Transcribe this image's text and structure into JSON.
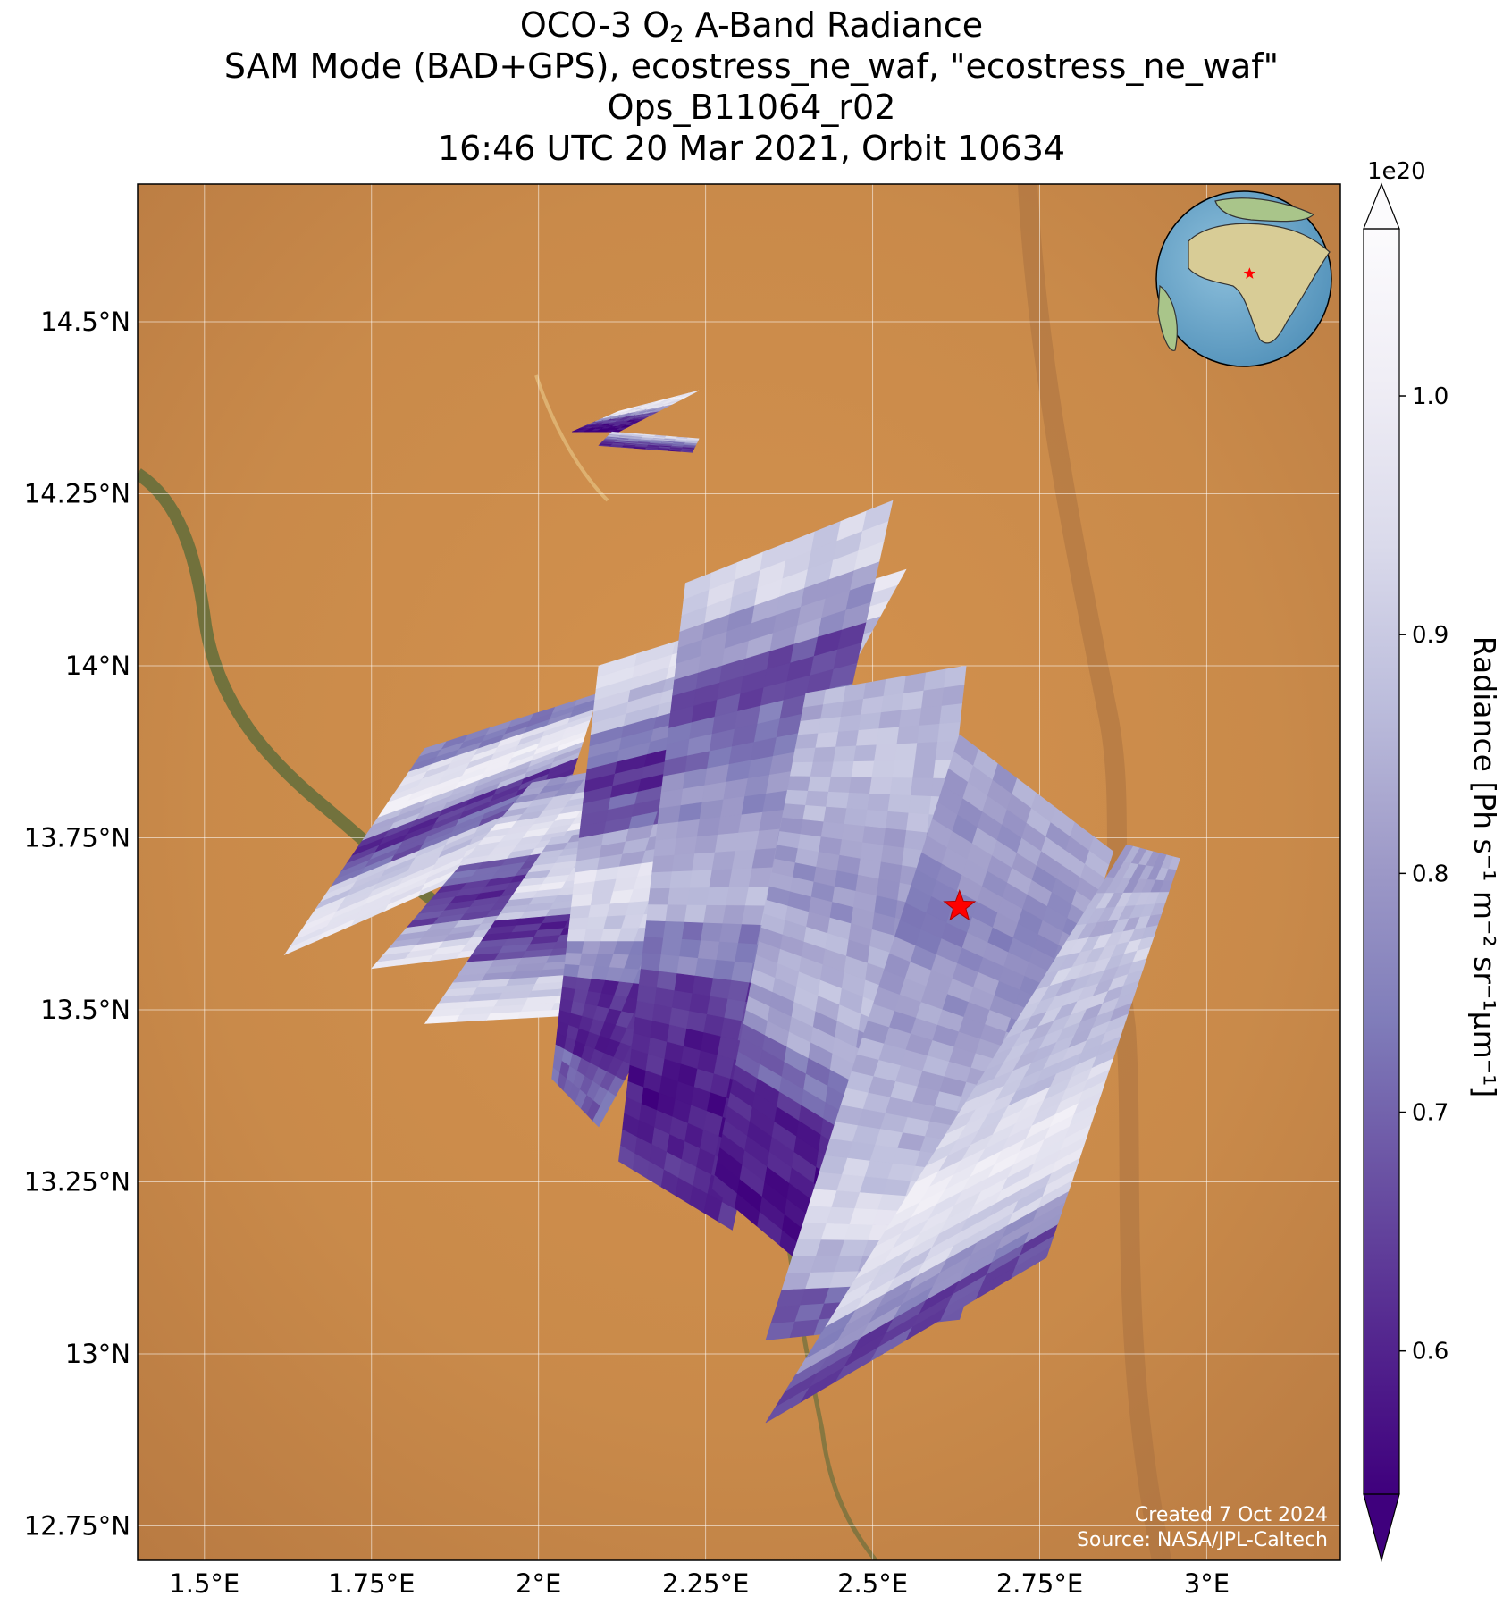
{
  "title": {
    "line1_pre": "OCO-3 O",
    "line1_sub": "2",
    "line1_post": " A-Band Radiance",
    "line2": "SAM Mode (BAD+GPS), ecostress_ne_waf, \"ecostress_ne_waf\"",
    "line3": "Ops_B11064_r02",
    "line4": "16:46 UTC 20 Mar 2021, Orbit 10634"
  },
  "map": {
    "lon_range": [
      1.4,
      3.2
    ],
    "lat_range": [
      12.7,
      14.7
    ],
    "lon_ticks": [
      {
        "value": 1.5,
        "label": "1.5°E"
      },
      {
        "value": 1.75,
        "label": "1.75°E"
      },
      {
        "value": 2.0,
        "label": "2°E"
      },
      {
        "value": 2.25,
        "label": "2.25°E"
      },
      {
        "value": 2.5,
        "label": "2.5°E"
      },
      {
        "value": 2.75,
        "label": "2.75°E"
      },
      {
        "value": 3.0,
        "label": "3°E"
      }
    ],
    "lat_ticks": [
      {
        "value": 14.5,
        "label": "14.5°N"
      },
      {
        "value": 14.25,
        "label": "14.25°N"
      },
      {
        "value": 14.0,
        "label": "14°N"
      },
      {
        "value": 13.75,
        "label": "13.75°N"
      },
      {
        "value": 13.5,
        "label": "13.5°N"
      },
      {
        "value": 13.25,
        "label": "13.25°N"
      },
      {
        "value": 13.0,
        "label": "13°N"
      },
      {
        "value": 12.75,
        "label": "12.75°N"
      }
    ],
    "target": {
      "lon": 2.63,
      "lat": 13.65
    },
    "swaths": [
      {
        "bottom_start": [
          1.62,
          13.58
        ],
        "bottom_end": [
          2.02,
          13.75
        ],
        "top_start": [
          1.83,
          13.88
        ],
        "top_end": [
          2.09,
          13.96
        ],
        "pattern": [
          0.97,
          0.95,
          0.9,
          0.7,
          0.62,
          0.85,
          0.99,
          0.95,
          0.75
        ]
      },
      {
        "bottom_start": [
          1.75,
          13.56
        ],
        "bottom_end": [
          2.09,
          13.6
        ],
        "top_start": [
          1.99,
          13.83
        ],
        "top_end": [
          2.22,
          13.87
        ],
        "pattern": [
          0.95,
          0.85,
          0.65,
          0.62,
          0.7,
          0.92,
          0.97,
          0.88,
          0.8
        ]
      },
      {
        "bottom_start": [
          1.83,
          13.48
        ],
        "bottom_end": [
          2.2,
          13.5
        ],
        "top_start": [
          2.02,
          13.75
        ],
        "top_end": [
          2.27,
          13.78
        ],
        "pattern": [
          0.98,
          0.9,
          0.8,
          0.66,
          0.62,
          0.88,
          0.96,
          0.9,
          0.85
        ]
      },
      {
        "bottom_start": [
          2.02,
          13.4
        ],
        "bottom_end": [
          2.09,
          13.33
        ],
        "top_start": [
          2.09,
          14.0
        ],
        "top_end": [
          2.55,
          14.14
        ],
        "pattern": [
          0.7,
          0.6,
          0.62,
          0.78,
          0.9,
          0.95,
          0.85,
          0.7,
          0.62,
          0.75,
          0.88,
          0.95
        ]
      },
      {
        "bottom_start": [
          2.12,
          13.28
        ],
        "bottom_end": [
          2.29,
          13.18
        ],
        "top_start": [
          2.22,
          14.12
        ],
        "top_end": [
          2.53,
          14.24
        ],
        "pattern": [
          0.62,
          0.58,
          0.6,
          0.65,
          0.75,
          0.85,
          0.82,
          0.78,
          0.72,
          0.66,
          0.8,
          0.92
        ]
      },
      {
        "bottom_start": [
          2.26,
          13.24
        ],
        "bottom_end": [
          2.53,
          13.02
        ],
        "top_start": [
          2.4,
          13.96
        ],
        "top_end": [
          2.64,
          14.0
        ],
        "pattern": [
          0.58,
          0.58,
          0.6,
          0.72,
          0.82,
          0.86,
          0.84,
          0.8,
          0.82,
          0.86,
          0.88,
          0.85
        ]
      },
      {
        "bottom_start": [
          2.34,
          13.02
        ],
        "bottom_end": [
          2.63,
          13.05
        ],
        "top_start": [
          2.63,
          13.9
        ],
        "top_end": [
          2.86,
          13.73
        ],
        "pattern": [
          0.7,
          0.86,
          0.94,
          0.9,
          0.86,
          0.84,
          0.82,
          0.8,
          0.76,
          0.78,
          0.8,
          0.82
        ]
      },
      {
        "bottom_start": [
          2.34,
          12.9
        ],
        "bottom_end": [
          2.76,
          13.14
        ],
        "top_start": [
          2.88,
          13.74
        ],
        "top_end": [
          2.96,
          13.72
        ],
        "pattern": [
          0.66,
          0.78,
          0.92,
          0.97,
          0.98,
          0.94,
          0.9,
          0.86,
          0.88,
          0.9,
          0.86,
          0.82
        ]
      },
      {
        "bottom_start": [
          2.05,
          14.34
        ],
        "bottom_end": [
          2.12,
          14.34
        ],
        "top_start": [
          2.12,
          14.37
        ],
        "top_end": [
          2.24,
          14.4
        ],
        "pattern": [
          0.55,
          0.58,
          0.65,
          0.8,
          0.95,
          0.98
        ]
      },
      {
        "bottom_start": [
          2.09,
          14.32
        ],
        "bottom_end": [
          2.23,
          14.31
        ],
        "top_start": [
          2.11,
          14.34
        ],
        "top_end": [
          2.24,
          14.33
        ],
        "pattern": [
          0.6,
          0.62,
          0.68,
          0.75,
          0.85,
          0.92
        ]
      }
    ]
  },
  "inset_globe": {
    "marker_lon": 2.6,
    "marker_lat": 13.6
  },
  "colorbar": {
    "label": "Radiance [Ph s⁻¹ m⁻² sr⁻¹µm⁻¹]",
    "exponent": "1e20",
    "range": [
      0.54,
      1.07
    ],
    "ticks": [
      {
        "value": 0.6,
        "label": "0.6"
      },
      {
        "value": 0.7,
        "label": "0.7"
      },
      {
        "value": 0.8,
        "label": "0.8"
      },
      {
        "value": 0.9,
        "label": "0.9"
      },
      {
        "value": 1.0,
        "label": "1.0"
      }
    ],
    "colors": [
      "#3f007d",
      "#54278f",
      "#6a51a3",
      "#807dba",
      "#9e9ac8",
      "#bcbddc",
      "#dadaeb",
      "#efedf5",
      "#fcfbfd"
    ]
  },
  "credits": {
    "line1": "Created 7 Oct 2024",
    "line2": "Source: NASA/JPL-Caltech"
  }
}
